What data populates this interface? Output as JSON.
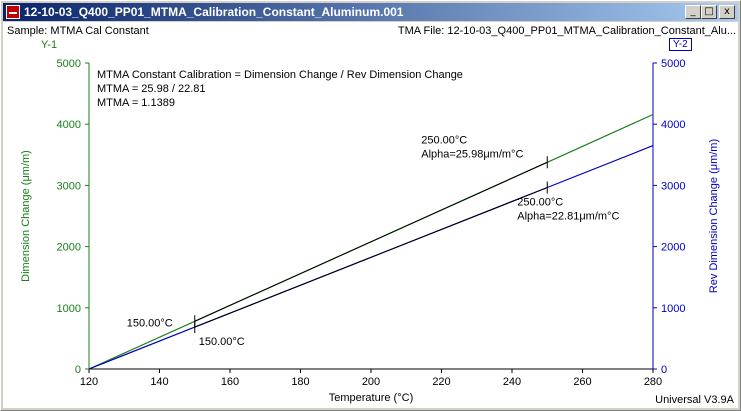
{
  "window": {
    "title": "12-10-03_Q400_PP01_MTMA_Calibration_Constant_Aluminum.001",
    "min_label": "_",
    "max_label": "□",
    "close_label": "x"
  },
  "header": {
    "sample": "Sample: MTMA Cal Constant",
    "tma_file": "TMA File: 12-10-03_Q400_PP01_MTMA_Calibration_Constant_Alu...",
    "y1_tag": "Y-1",
    "y2_tag": "Y-2"
  },
  "footer": {
    "version": "Universal V3.9A"
  },
  "colors": {
    "y1": "#1a7f1a",
    "y2": "#0000c0",
    "annotation": "#000000"
  },
  "chart_data": {
    "type": "line",
    "xlabel": "Temperature (°C)",
    "ylabel": "Dimension Change (μm/m)",
    "y2label": "Rev Dimension Change (μm/m)",
    "xlim": [
      120,
      280
    ],
    "ylim": [
      0,
      5000
    ],
    "y2lim": [
      0,
      5000
    ],
    "xticks": [
      120,
      140,
      160,
      180,
      200,
      220,
      240,
      260,
      280
    ],
    "yticks": [
      0,
      1000,
      2000,
      3000,
      4000,
      5000
    ],
    "y2ticks": [
      0,
      1000,
      2000,
      3000,
      4000,
      5000
    ],
    "grid": false,
    "annotation_lines": [
      "MTMA Constant Calibration = Dimension Change / Rev Dimension Change",
      "MTMA = 25.98 / 22.81",
      "MTMA = 1.1389"
    ],
    "series": [
      {
        "name": "",
        "axis": "y1",
        "x": [
          120,
          150,
          250,
          280
        ],
        "y": [
          0,
          780,
          3378,
          4158
        ]
      },
      {
        "name": "",
        "axis": "y2",
        "x": [
          120,
          150,
          250,
          280
        ],
        "y": [
          0,
          684,
          2965,
          3650
        ]
      }
    ],
    "fit_lines": [
      {
        "axis": "y1",
        "x": [
          150,
          250
        ],
        "y": [
          780,
          3378
        ]
      },
      {
        "axis": "y2",
        "x": [
          150,
          250
        ],
        "y": [
          684,
          2965
        ]
      }
    ],
    "markers": [
      {
        "axis": "y1",
        "x": 150,
        "y": 780,
        "labels": [
          "150.00°C"
        ],
        "label_side": "left"
      },
      {
        "axis": "y2",
        "x": 150,
        "y": 684,
        "labels": [
          "150.00°C"
        ],
        "label_side": "below"
      },
      {
        "axis": "y1",
        "x": 250,
        "y": 3378,
        "labels": [
          "250.00°C",
          "Alpha=25.98μm/m°C"
        ],
        "label_side": "upper-left"
      },
      {
        "axis": "y2",
        "x": 250,
        "y": 2965,
        "labels": [
          "250.00°C",
          "Alpha=22.81μm/m°C"
        ],
        "label_side": "lower-right"
      }
    ]
  }
}
